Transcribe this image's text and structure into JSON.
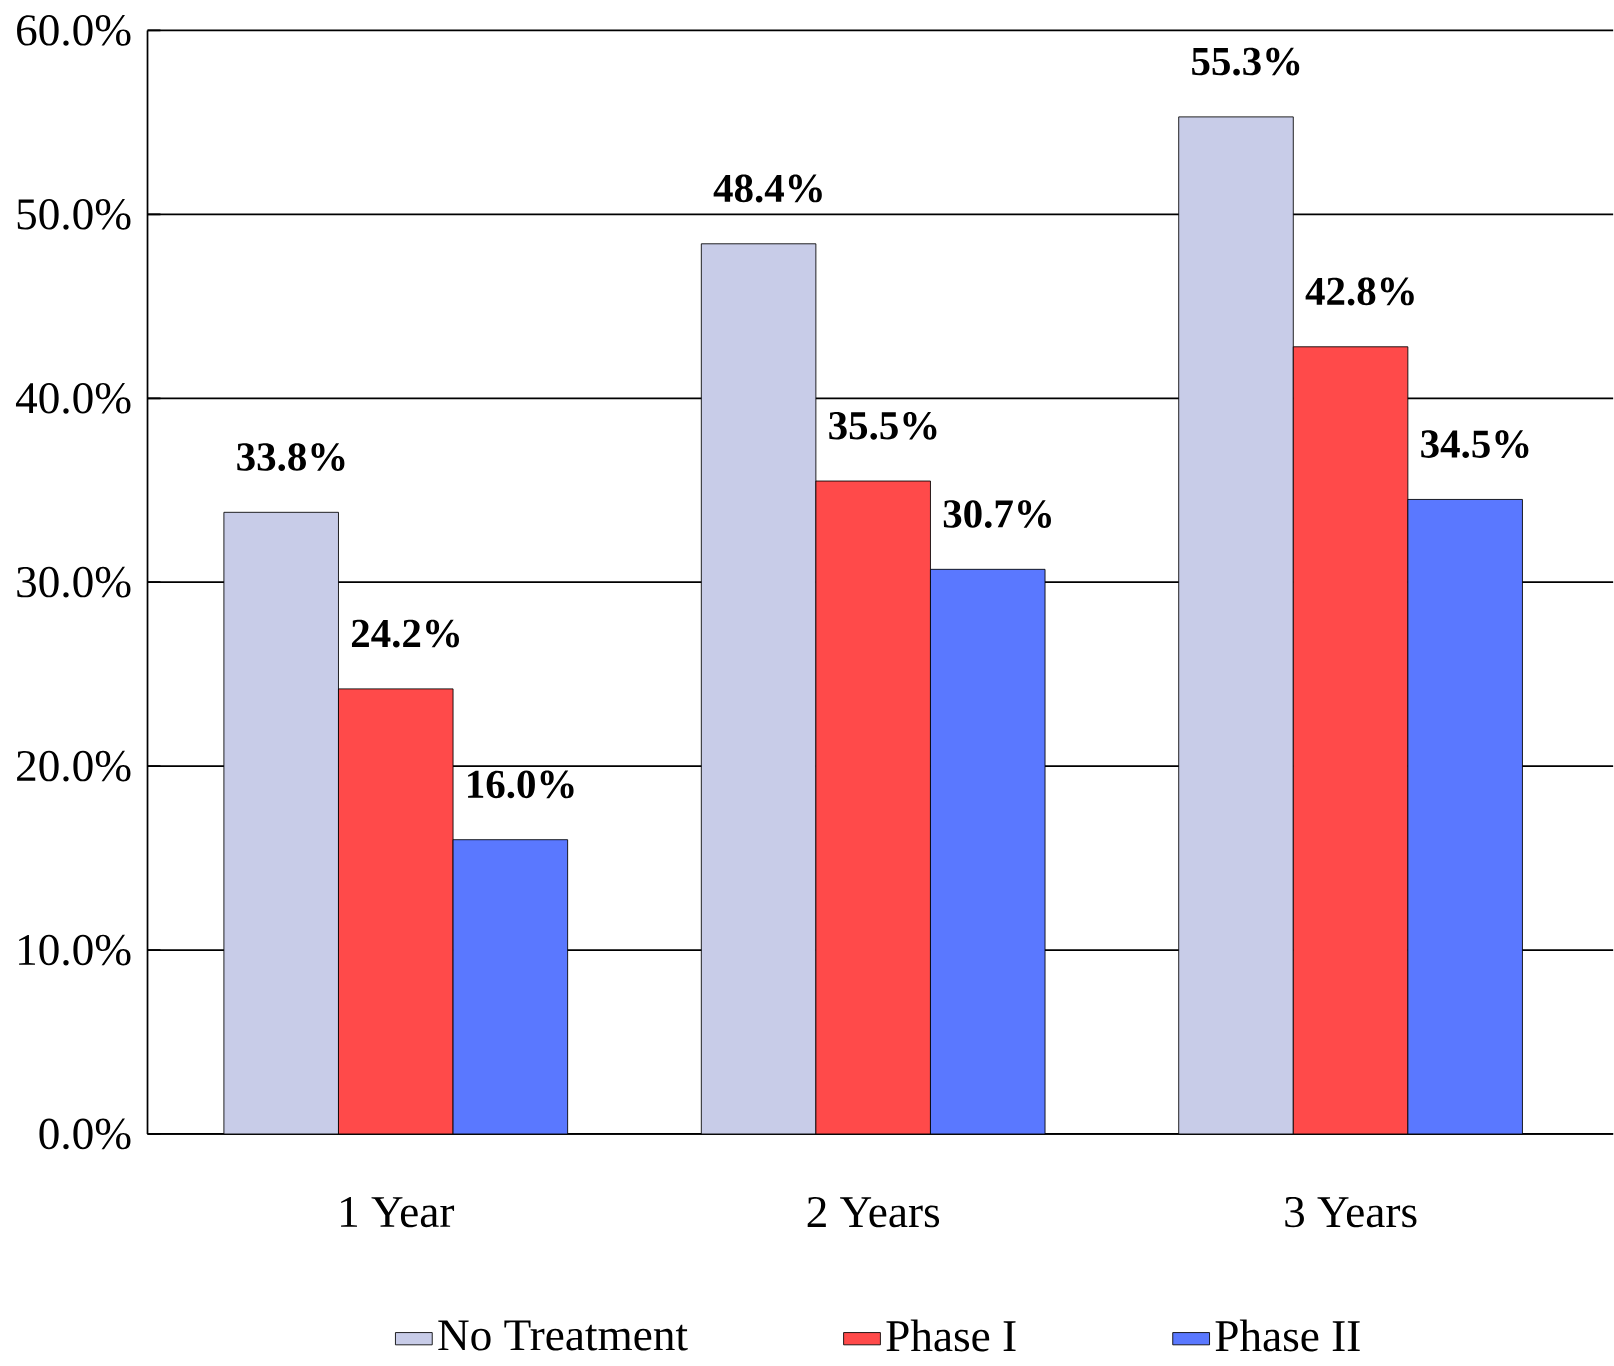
{
  "chart_data": {
    "type": "bar",
    "categories": [
      "1 Year",
      "2 Years",
      "3 Years"
    ],
    "series": [
      {
        "name": "No Treatment",
        "color": "#c8cce8",
        "values": [
          33.8,
          48.4,
          55.3
        ],
        "value_labels": [
          "33.8%",
          "48.4%",
          "55.3%"
        ]
      },
      {
        "name": "Phase I",
        "color": "#ff4a4a",
        "values": [
          24.2,
          35.5,
          42.8
        ],
        "value_labels": [
          "24.2%",
          "35.5%",
          "42.8%"
        ]
      },
      {
        "name": "Phase II",
        "color": "#5a78ff",
        "values": [
          16.0,
          30.7,
          34.5
        ],
        "value_labels": [
          "16.0%",
          "30.7%",
          "34.5%"
        ]
      }
    ],
    "ylim": [
      0,
      60
    ],
    "yticks": [
      {
        "value": 0,
        "label": "0.0%"
      },
      {
        "value": 10,
        "label": "10.0%"
      },
      {
        "value": 20,
        "label": "20.0%"
      },
      {
        "value": 30,
        "label": "30.0%"
      },
      {
        "value": 40,
        "label": "40.0%"
      },
      {
        "value": 50,
        "label": "50.0%"
      },
      {
        "value": 60,
        "label": "60.0%"
      }
    ],
    "grid": "y",
    "legend": "bottom"
  }
}
